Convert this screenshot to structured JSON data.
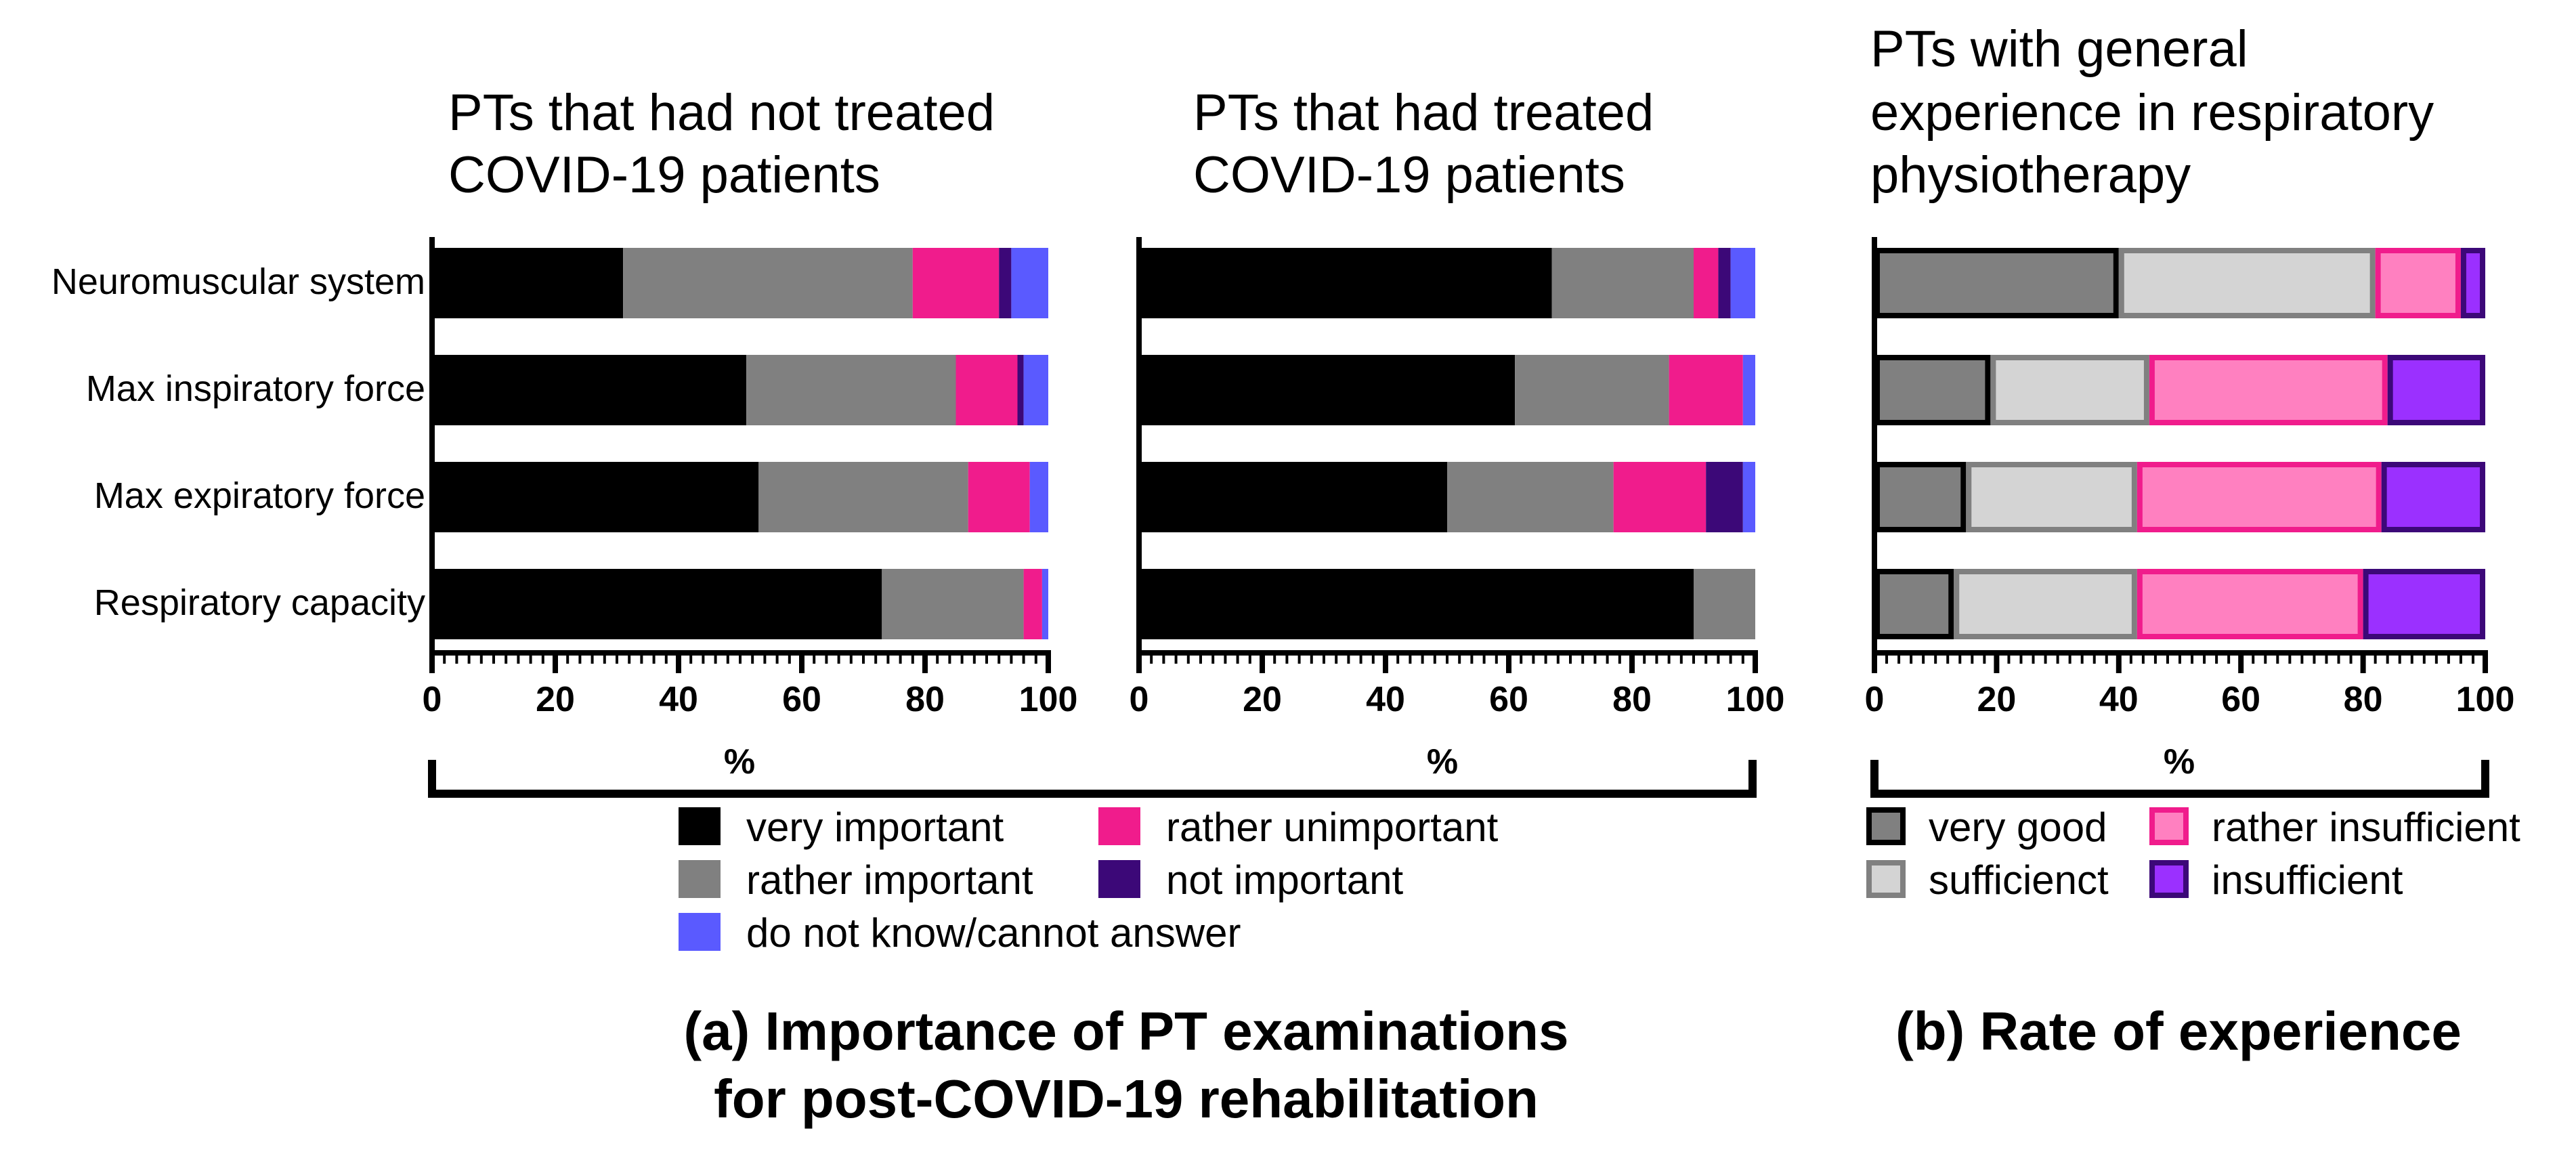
{
  "chart_data": [
    {
      "type": "bar",
      "stacked": true,
      "orientation": "horizontal",
      "panel": "a-left",
      "title": [
        "PTs that had not treated",
        "COVID-19 patients"
      ],
      "categories": [
        "Neuromuscular system",
        "Max inspiratory force",
        "Max expiratory force",
        "Respiratory capacity"
      ],
      "xlim": [
        0,
        100
      ],
      "xticks": [
        "0",
        "20",
        "40",
        "60",
        "80",
        "100"
      ],
      "series": [
        {
          "name": "very important",
          "values": [
            31,
            51,
            53,
            73
          ]
        },
        {
          "name": "rather important",
          "values": [
            47,
            34,
            34,
            23
          ]
        },
        {
          "name": "rather unimportant",
          "values": [
            14,
            10,
            10,
            3
          ]
        },
        {
          "name": "not important",
          "values": [
            2,
            1,
            0,
            0
          ]
        },
        {
          "name": "do not know/cannot answer",
          "values": [
            6,
            4,
            3,
            1
          ]
        }
      ]
    },
    {
      "type": "bar",
      "stacked": true,
      "orientation": "horizontal",
      "panel": "a-right",
      "title": [
        "PTs that had treated",
        "COVID-19 patients"
      ],
      "categories": [
        "Neuromuscular system",
        "Max inspiratory force",
        "Max expiratory force",
        "Respiratory capacity"
      ],
      "xlim": [
        0,
        100
      ],
      "xticks": [
        "0",
        "20",
        "40",
        "60",
        "80",
        "100"
      ],
      "series": [
        {
          "name": "very important",
          "values": [
            67,
            61,
            50,
            90
          ]
        },
        {
          "name": "rather important",
          "values": [
            23,
            25,
            27,
            10
          ]
        },
        {
          "name": "rather unimportant",
          "values": [
            4,
            12,
            15,
            0
          ]
        },
        {
          "name": "not important",
          "values": [
            2,
            0,
            6,
            0
          ]
        },
        {
          "name": "do not know/cannot answer",
          "values": [
            4,
            2,
            2,
            0
          ]
        }
      ]
    },
    {
      "type": "bar",
      "stacked": true,
      "orientation": "horizontal",
      "panel": "b",
      "title": [
        "PTs with general",
        "experience in respiratory",
        "physiotherapy"
      ],
      "categories": [
        "Neuromuscular system",
        "Max inspiratory force",
        "Max expiratory force",
        "Respiratory capacity"
      ],
      "xlim": [
        0,
        100
      ],
      "xticks": [
        "0",
        "20",
        "40",
        "60",
        "80",
        "100"
      ],
      "series": [
        {
          "name": "very good",
          "values": [
            40,
            19,
            15,
            13
          ]
        },
        {
          "name": "sufficienct",
          "values": [
            42,
            26,
            28,
            30
          ]
        },
        {
          "name": "rather insufficient",
          "values": [
            14,
            39,
            40,
            37
          ]
        },
        {
          "name": "insufficient",
          "values": [
            4,
            16,
            17,
            20
          ]
        }
      ]
    }
  ],
  "axis_unit_a": "%",
  "axis_unit_b": "%",
  "legend_a": [
    {
      "label": "very important",
      "color": "#000000"
    },
    {
      "label": "rather important",
      "color": "#808080"
    },
    {
      "label": "do not know/cannot answer",
      "color": "#5a5aff"
    },
    {
      "label": "rather unimportant",
      "color": "#f01c8c"
    },
    {
      "label": "not important",
      "color": "#3c0878"
    }
  ],
  "legend_b": [
    {
      "label": "very good",
      "fill": "#808080",
      "stroke": "#000000"
    },
    {
      "label": "sufficienct",
      "fill": "#d4d4d4",
      "stroke": "#808080"
    },
    {
      "label": "rather insufficient",
      "fill": "#ff80c0",
      "stroke": "#f01c8c"
    },
    {
      "label": "insufficient",
      "fill": "#9b30ff",
      "stroke": "#3c0878"
    }
  ],
  "caption_a": [
    "(a) Importance of PT examinations",
    "for post-COVID-19 rehabilitation"
  ],
  "caption_b": "(b) Rate of experience"
}
